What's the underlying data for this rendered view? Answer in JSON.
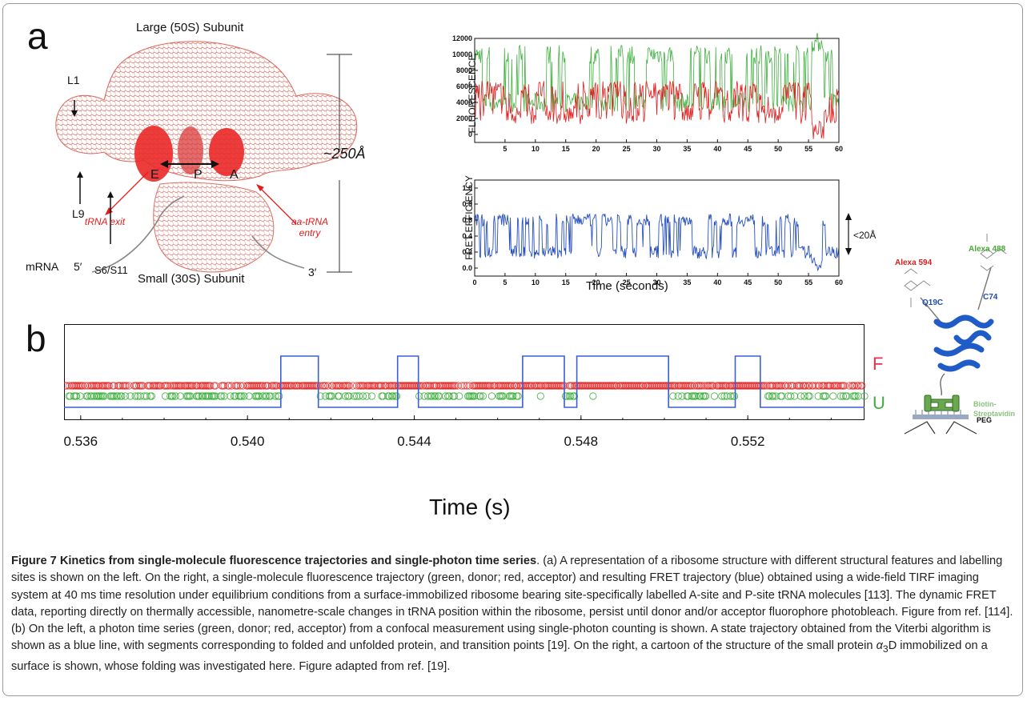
{
  "colors": {
    "donor": "#3fb13f",
    "acceptor": "#e01e1e",
    "fret": "#2850c0",
    "ribosome": "#e06050",
    "state_line": "#3a5fd6",
    "folded_label": "#e2324f",
    "unfolded_label": "#3fae3f"
  },
  "panel_a": {
    "letter": "a",
    "ribosome": {
      "top_label": "Large (50S) Subunit",
      "bottom_label": "Small (30S) Subunit",
      "L1": "L1",
      "L9": "L9",
      "E": "E",
      "P": "P",
      "A": "A",
      "trna_exit": "tRNA exit",
      "aa_trna_entry": "aa-tRNA entry",
      "mrna": "mRNA",
      "five_prime": "5′",
      "three_prime": "3′",
      "s6s11": "S6/S11",
      "size_label": "~250Å"
    },
    "fluorescence_plot": {
      "ylabel": "FLUORESCENCE",
      "yticks": [
        "12000",
        "10000",
        "8000",
        "6000",
        "4000",
        "2000",
        "0"
      ],
      "xticks": [
        "5",
        "10",
        "15",
        "20",
        "25",
        "30",
        "35",
        "40",
        "45",
        "50",
        "55",
        "60"
      ]
    },
    "fret_plot": {
      "ylabel": "FRET EFFICIENCY",
      "yticks": [
        "1.0",
        "0.8",
        "0.6",
        "0.4",
        "0.2",
        "0.0"
      ],
      "xticks": [
        "0",
        "5",
        "10",
        "15",
        "20",
        "25",
        "30",
        "35",
        "40",
        "45",
        "50",
        "55",
        "60"
      ],
      "xlabel": "Time (seconds)",
      "range_label": "<20Å"
    }
  },
  "panel_b": {
    "letter": "b",
    "xticks": [
      "0.536",
      "0.540",
      "0.544",
      "0.548",
      "0.552"
    ],
    "xlabel": "Time (s)",
    "state_labels": {
      "folded": "F",
      "unfolded": "U"
    },
    "protein": {
      "alexa594": "Alexa 594",
      "alexa488": "Alexa 488",
      "c74": "C74",
      "q19c": "Q19C",
      "biotin": "Biotin-Streptavidin",
      "peg": "PEG"
    }
  },
  "chart_data": [
    {
      "type": "line",
      "title": "",
      "ylabel": "FLUORESCENCE",
      "xlabel": "",
      "xlim": [
        0,
        60
      ],
      "ylim": [
        -1000,
        12000
      ],
      "series": [
        {
          "name": "",
          "color": "#3fb13f",
          "levels": [
            4000,
            10000
          ]
        },
        {
          "name": "",
          "color": "#e01e1e",
          "levels": [
            2500,
            5500
          ]
        }
      ]
    },
    {
      "type": "line",
      "title": "",
      "ylabel": "FRET EFFICIENCY",
      "xlabel": "Time (seconds)",
      "xlim": [
        0,
        60
      ],
      "ylim": [
        -0.1,
        1.1
      ],
      "series": [
        {
          "name": "",
          "color": "#2850c0",
          "levels": [
            0.2,
            0.6
          ]
        }
      ],
      "annotation": "<20Å"
    },
    {
      "type": "line",
      "title": "",
      "xlabel": "Time (s)",
      "xlim": [
        0.5356,
        0.5548
      ],
      "series": [
        {
          "name": "",
          "color": "#3a5fd6",
          "state_transitions": [
            {
              "t": 0.5356,
              "state": "U"
            },
            {
              "t": 0.5408,
              "state": "F"
            },
            {
              "t": 0.5417,
              "state": "U"
            },
            {
              "t": 0.5436,
              "state": "F"
            },
            {
              "t": 0.5441,
              "state": "U"
            },
            {
              "t": 0.5466,
              "state": "F"
            },
            {
              "t": 0.5476,
              "state": "U"
            },
            {
              "t": 0.5479,
              "state": "F"
            },
            {
              "t": 0.5501,
              "state": "U"
            },
            {
              "t": 0.5517,
              "state": "F"
            },
            {
              "t": 0.5523,
              "state": "U"
            },
            {
              "t": 0.5548,
              "state": "U"
            }
          ]
        }
      ]
    }
  ],
  "caption": {
    "bold": "Figure 7 Kinetics from single-molecule fluorescence trajectories and single-photon time series",
    "text_1": ". (a) A representation of a ribosome structure with different structural features and labelling sites is shown on the left. On the right, a single-molecule fluorescence trajectory (green, donor; red, acceptor) and resulting FRET trajectory (blue) obtained using a wide-field TIRF imaging system at 40 ms time resolution under equilibrium conditions from a surface-immobilized ribosome bearing site-specifically labelled A-site and P-site tRNA molecules [113]. The dynamic FRET data, reporting directly on thermally accessible, nanometre-scale changes in tRNA position within the ribosome, persist until donor and/or acceptor fluorophore photobleach. Figure from ref. [114]. (b) On the left, a photon time series (green, donor; red, acceptor) from a confocal measurement using single-photon counting is shown. A state trajectory obtained from the Viterbi algorithm is shown as a blue line, with segments corresponding to folded and unfolded protein, and transition points [19]. On the right, a cartoon of the structure of the small protein ",
    "alpha": "α",
    "sub3": "3",
    "text_2": "D immobilized on a surface is shown, whose folding was investigated here. Figure adapted from ref. [19]."
  }
}
